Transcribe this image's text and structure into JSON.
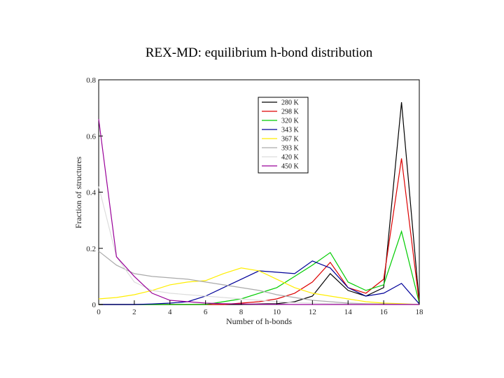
{
  "chart_data": {
    "type": "line",
    "title": "REX-MD: equilibrium h-bond distribution",
    "xlabel": "Number of h-bonds",
    "ylabel": "Fraction of structures",
    "xlim": [
      0,
      18
    ],
    "ylim": [
      0,
      0.8
    ],
    "x_ticks": [
      "0",
      "2",
      "4",
      "6",
      "8",
      "10",
      "12",
      "14",
      "16",
      "18"
    ],
    "y_ticks": [
      "0",
      "0.2",
      "0.4",
      "0.6",
      "0.8"
    ],
    "grid": false,
    "legend_position": "top-right",
    "x": [
      0,
      1,
      2,
      3,
      4,
      5,
      6,
      7,
      8,
      9,
      10,
      11,
      12,
      13,
      14,
      15,
      16,
      17,
      18
    ],
    "series": [
      {
        "name": "280 K",
        "color": "#000000",
        "values": [
          0,
          0,
          0,
          0,
          0,
          0,
          0,
          0,
          0,
          0.002,
          0.003,
          0.01,
          0.03,
          0.11,
          0.05,
          0.03,
          0.06,
          0.72,
          0.005
        ]
      },
      {
        "name": "298 K",
        "color": "#dd0000",
        "values": [
          0,
          0,
          0,
          0,
          0,
          0,
          0,
          0,
          0.005,
          0.01,
          0.02,
          0.04,
          0.08,
          0.15,
          0.06,
          0.04,
          0.09,
          0.52,
          0.005
        ]
      },
      {
        "name": "320 K",
        "color": "#00cc00",
        "values": [
          0,
          0,
          0,
          0,
          0,
          0,
          0,
          0.01,
          0.02,
          0.04,
          0.06,
          0.1,
          0.14,
          0.185,
          0.08,
          0.05,
          0.07,
          0.26,
          0.005
        ]
      },
      {
        "name": "343 K",
        "color": "#000099",
        "values": [
          0,
          0,
          0,
          0.002,
          0.005,
          0.01,
          0.03,
          0.06,
          0.09,
          0.12,
          0.115,
          0.11,
          0.155,
          0.13,
          0.06,
          0.03,
          0.04,
          0.075,
          0.002
        ]
      },
      {
        "name": "367 K",
        "color": "#ffee00",
        "values": [
          0.02,
          0.025,
          0.035,
          0.05,
          0.07,
          0.08,
          0.085,
          0.11,
          0.13,
          0.12,
          0.09,
          0.06,
          0.04,
          0.03,
          0.02,
          0.01,
          0.005,
          0.003,
          0
        ]
      },
      {
        "name": "393 K",
        "color": "#aaaaaa",
        "values": [
          0.19,
          0.14,
          0.11,
          0.1,
          0.095,
          0.09,
          0.08,
          0.07,
          0.06,
          0.05,
          0.035,
          0.025,
          0.015,
          0.01,
          0.005,
          0.003,
          0.002,
          0.001,
          0
        ]
      },
      {
        "name": "420 K",
        "color": "#dddddd",
        "values": [
          0.42,
          0.17,
          0.08,
          0.05,
          0.04,
          0.035,
          0.03,
          0.025,
          0.02,
          0.015,
          0.01,
          0.007,
          0.005,
          0.003,
          0.002,
          0.001,
          0,
          0,
          0
        ]
      },
      {
        "name": "450 K",
        "color": "#990099",
        "values": [
          0.66,
          0.17,
          0.1,
          0.04,
          0.015,
          0.01,
          0.005,
          0.003,
          0.002,
          0.001,
          0.001,
          0,
          0,
          0,
          0,
          0,
          0,
          0,
          0
        ]
      }
    ]
  }
}
